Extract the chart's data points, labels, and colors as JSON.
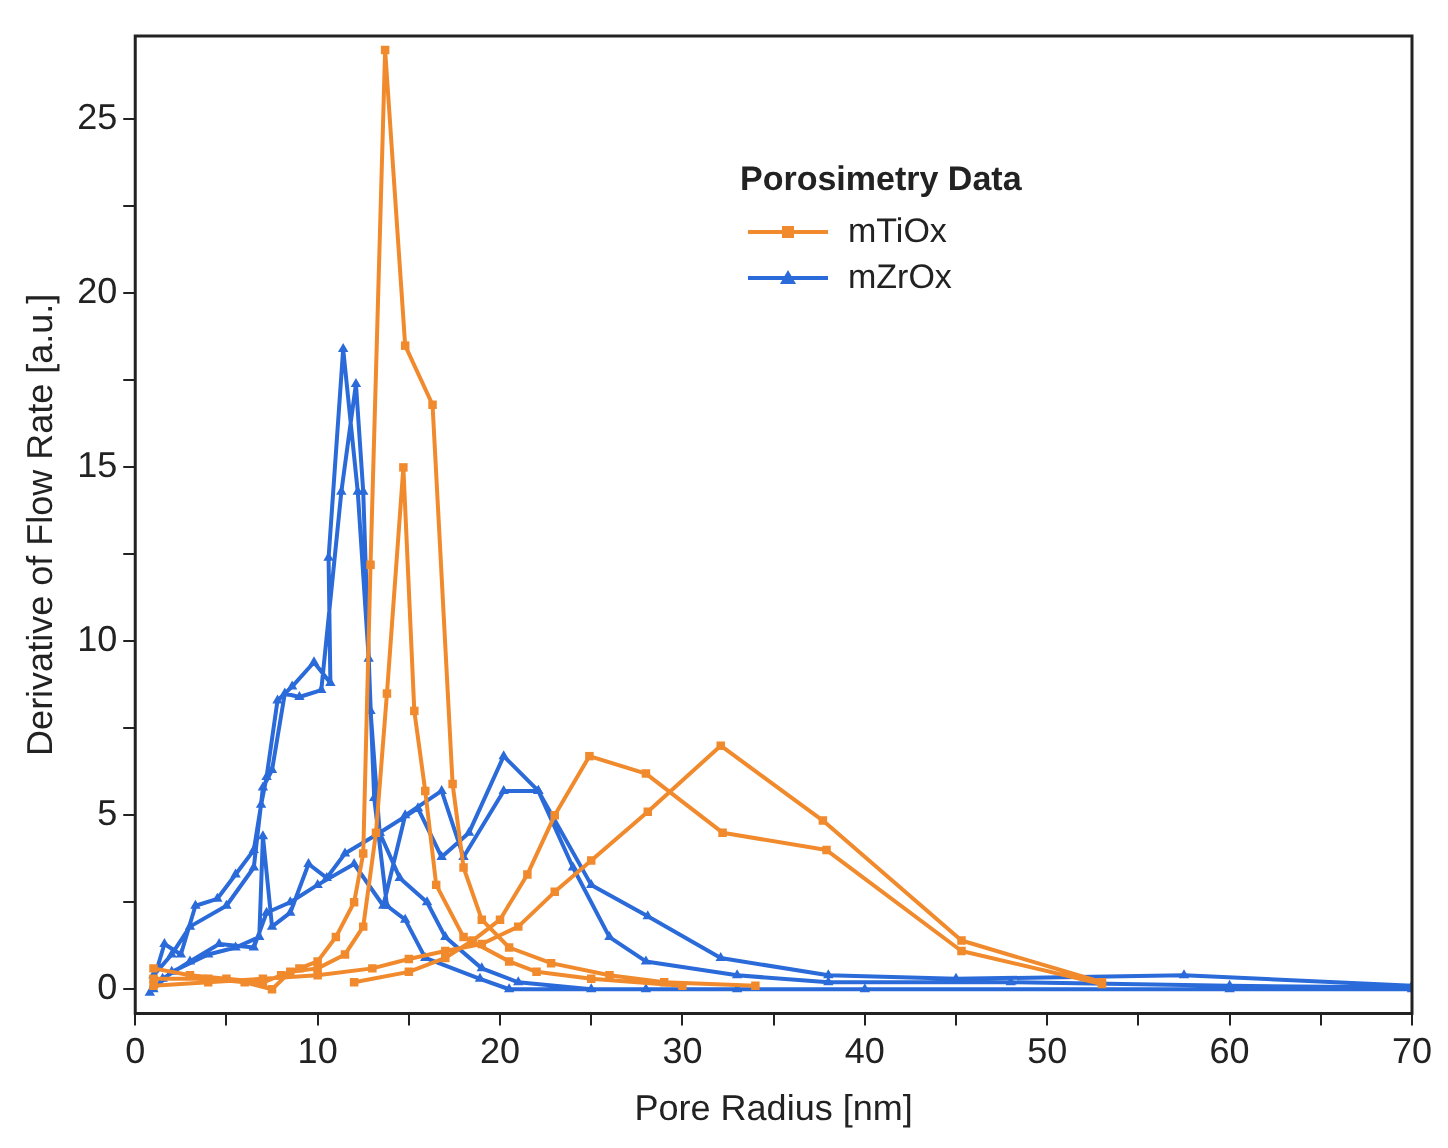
{
  "chart_data": {
    "type": "line",
    "xlabel": "Pore Radius [nm]",
    "ylabel": "Derivative of Flow Rate [a.u.]",
    "legend_title": "Porosimetry Data",
    "legend": "top right",
    "grid": false,
    "xlim": [
      0,
      70
    ],
    "xticks": [
      0,
      {
        "value": 5,
        "label": null
      },
      10,
      {
        "value": 15,
        "label": null
      },
      20,
      {
        "value": 25,
        "label": null
      },
      30,
      {
        "value": 35,
        "label": null
      },
      40,
      {
        "value": 45,
        "label": null
      },
      50,
      {
        "value": 55,
        "label": null
      },
      60,
      {
        "value": 65,
        "label": null
      },
      70
    ],
    "ylim": [
      -0.7,
      27.4
    ],
    "yticks": [
      0,
      {
        "value": 2.5,
        "label": null
      },
      5,
      {
        "value": 7.5,
        "label": null
      },
      10,
      {
        "value": 12.5,
        "label": null
      },
      15,
      {
        "value": 17.5,
        "label": null
      },
      20,
      {
        "value": 22.5,
        "label": null
      },
      25
    ],
    "series": [
      {
        "name": "mTiOx",
        "color": "#f08a2c",
        "marker": "square",
        "x": [
          1,
          3,
          5,
          7,
          8,
          9,
          10,
          11,
          12,
          12.5,
          12.9,
          13.7,
          14.8,
          16.3,
          17.4,
          18,
          19,
          20.5,
          22.8,
          26,
          29,
          34,
          null,
          1,
          4,
          6,
          7.5,
          8.5,
          10,
          11.5,
          12.5,
          13.2,
          13.8,
          14.7,
          15.3,
          15.9,
          16.5,
          18,
          20.5,
          22,
          25,
          30,
          null,
          1,
          4,
          7,
          10,
          13,
          15,
          17,
          19,
          21,
          23,
          25,
          28.1,
          32.1,
          37.7,
          45.3,
          53,
          null,
          12,
          15,
          17,
          18.5,
          20,
          21.5,
          23,
          24.9,
          28,
          32.2,
          37.9,
          45.3,
          53
        ],
        "values": [
          0.6,
          0.4,
          0.3,
          0.2,
          0.4,
          0.6,
          0.8,
          1.5,
          2.5,
          3.9,
          12.2,
          27,
          18.5,
          16.8,
          5.9,
          3.5,
          2,
          1.2,
          0.75,
          0.4,
          0.2,
          0.1,
          null,
          0.3,
          0.3,
          0.2,
          0,
          0.5,
          0.6,
          1,
          1.8,
          4.5,
          8.5,
          15,
          8,
          5.7,
          3,
          1.5,
          0.8,
          0.5,
          0.3,
          0.1,
          null,
          0.1,
          0.2,
          0.3,
          0.4,
          0.6,
          0.87,
          1.1,
          1.3,
          1.8,
          2.8,
          3.7,
          5.1,
          7.0,
          4.85,
          1.4,
          0.2,
          null,
          0.2,
          0.5,
          0.9,
          1.4,
          2,
          3.3,
          5,
          6.7,
          6.2,
          4.5,
          4.0,
          1.1,
          0.15
        ]
      },
      {
        "name": "mZrOx",
        "color": "#2a6ad9",
        "marker": "triangle",
        "x": [
          0.8,
          1.6,
          2.5,
          3.3,
          4.5,
          5.5,
          6.5,
          6.9,
          7.2,
          7.8,
          8.6,
          9.8,
          10.7,
          10.6,
          11.4,
          12.2,
          12.8,
          13.1,
          13.8,
          14.8,
          15.9,
          18.9,
          20.5,
          28,
          40,
          60,
          70,
          null,
          1,
          2,
          3,
          5,
          6.5,
          7,
          7.5,
          8.2,
          9,
          10.2,
          11.3,
          12.1,
          12.5,
          12.9,
          13.4,
          14.5,
          16,
          17,
          19,
          21,
          25,
          33,
          null,
          1,
          2,
          4,
          5.5,
          6.8,
          7,
          7.5,
          8.5,
          9.5,
          10.5,
          11.5,
          13.4,
          15.5,
          16.8,
          18.3,
          20.2,
          22.1,
          25,
          28.1,
          32.1,
          38,
          45,
          57.5,
          70,
          null,
          1.5,
          3,
          4.6,
          6.5,
          7.2,
          8.5,
          10,
          12,
          13.6,
          14.8,
          16.8,
          18,
          20.2,
          22.1,
          24,
          26,
          28,
          33,
          38,
          48,
          60,
          70
        ],
        "values": [
          -0.1,
          1.3,
          1,
          2.4,
          2.6,
          3.3,
          4,
          5.3,
          6.1,
          8.3,
          8.7,
          9.4,
          8.8,
          12.4,
          18.4,
          14.3,
          9.5,
          5.5,
          2.4,
          2,
          0.9,
          0.3,
          0,
          0,
          0,
          0,
          0,
          null,
          0.4,
          1,
          1.8,
          2.4,
          3.5,
          5.8,
          6.3,
          8.5,
          8.4,
          8.6,
          14.3,
          17.4,
          14.3,
          8,
          4.5,
          3.2,
          2.5,
          1.5,
          0.6,
          0.2,
          0,
          0,
          null,
          0,
          0.5,
          1,
          1.2,
          1.5,
          4.4,
          1.8,
          2.2,
          3.6,
          3.2,
          3.9,
          4.5,
          5.2,
          3.8,
          4.5,
          6.7,
          5.7,
          3.0,
          2.1,
          0.9,
          0.4,
          0.3,
          0.4,
          0.1,
          null,
          0.3,
          0.8,
          1.3,
          1.2,
          2.2,
          2.5,
          3,
          3.6,
          2.4,
          5,
          5.7,
          3.8,
          5.7,
          5.7,
          3.5,
          1.5,
          0.8,
          0.4,
          0.2,
          0.2,
          0.1,
          0.05
        ]
      }
    ]
  }
}
